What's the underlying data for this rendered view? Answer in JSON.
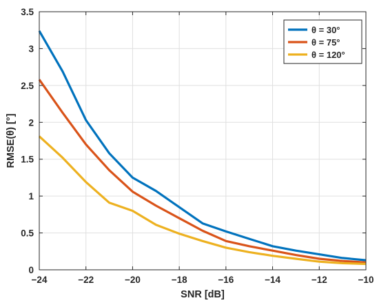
{
  "chart_data": {
    "type": "line",
    "xlabel": "SNR [dB]",
    "ylabel": "RMSE(θ) [°]",
    "xlim": [
      -24,
      -10
    ],
    "ylim": [
      0,
      3.5
    ],
    "xticks": [
      -24,
      -22,
      -20,
      -18,
      -16,
      -14,
      -12,
      -10
    ],
    "yticks": [
      0,
      0.5,
      1,
      1.5,
      2,
      2.5,
      3,
      3.5
    ],
    "xtick_labels": [
      "−24",
      "−22",
      "−20",
      "−18",
      "−16",
      "−14",
      "−12",
      "−10"
    ],
    "ytick_labels": [
      "0",
      "0.5",
      "1",
      "1.5",
      "2",
      "2.5",
      "3",
      "3.5"
    ],
    "grid": true,
    "legend_position": "top-right",
    "x": [
      -24,
      -23,
      -22,
      -21,
      -20,
      -19,
      -18,
      -17,
      -16,
      -15,
      -14,
      -13,
      -12,
      -11,
      -10
    ],
    "series": [
      {
        "name": "θ = 30°",
        "color": "#0072BD",
        "values": [
          3.24,
          2.69,
          2.03,
          1.58,
          1.25,
          1.07,
          0.85,
          0.63,
          0.52,
          0.42,
          0.32,
          0.26,
          0.21,
          0.16,
          0.13
        ]
      },
      {
        "name": "θ = 75°",
        "color": "#D95319",
        "values": [
          2.58,
          2.13,
          1.7,
          1.35,
          1.06,
          0.87,
          0.7,
          0.53,
          0.39,
          0.32,
          0.26,
          0.2,
          0.15,
          0.12,
          0.1
        ]
      },
      {
        "name": "θ = 120°",
        "color": "#EDB120",
        "values": [
          1.81,
          1.52,
          1.19,
          0.91,
          0.8,
          0.61,
          0.49,
          0.39,
          0.3,
          0.24,
          0.19,
          0.15,
          0.11,
          0.09,
          0.08
        ]
      }
    ]
  }
}
